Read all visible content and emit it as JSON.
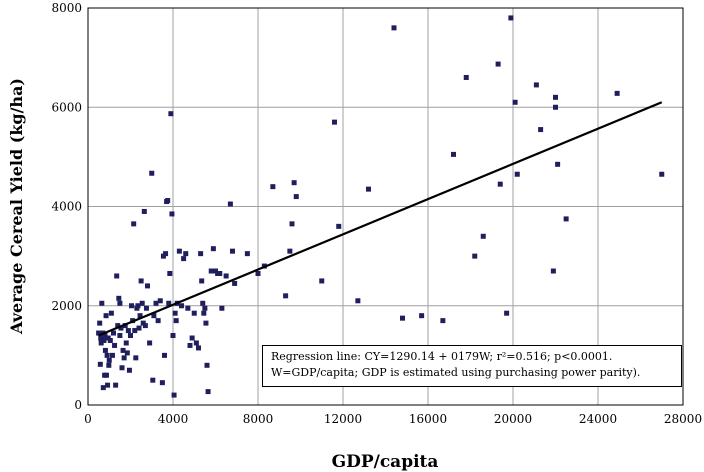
{
  "chart_data": {
    "type": "scatter",
    "title": "",
    "xlabel": "GDP/capita",
    "ylabel": "Average Cereal Yield (kg/ha)",
    "xlim": [
      0,
      28000
    ],
    "ylim": [
      0,
      8000
    ],
    "xticks": [
      "0",
      "4000",
      "8000",
      "12000",
      "16000",
      "20000",
      "24000",
      "28000"
    ],
    "yticks": [
      "0",
      "2000",
      "4000",
      "6000",
      "8000"
    ],
    "grid": "vertical and horizontal major gridlines",
    "marker_color": "#1f1f5e",
    "line_color": "#000000",
    "regression": {
      "x": [
        500,
        27000
      ],
      "y": [
        1400,
        6100
      ]
    },
    "annotation": [
      "Regression line: CY=1290.14 + 0179W; r²=0.516; p<0.0001.",
      "W=GDP/capita; GDP is estimated using purchasing power parity)."
    ],
    "points": [
      [
        500,
        1450
      ],
      [
        550,
        1650
      ],
      [
        580,
        820
      ],
      [
        600,
        1350
      ],
      [
        620,
        1250
      ],
      [
        650,
        2050
      ],
      [
        700,
        1450
      ],
      [
        720,
        350
      ],
      [
        750,
        1300
      ],
      [
        780,
        600
      ],
      [
        800,
        1400
      ],
      [
        820,
        1100
      ],
      [
        850,
        1800
      ],
      [
        870,
        600
      ],
      [
        900,
        1000
      ],
      [
        920,
        400
      ],
      [
        950,
        1350
      ],
      [
        980,
        800
      ],
      [
        1000,
        900
      ],
      [
        1050,
        1300
      ],
      [
        1100,
        1850
      ],
      [
        1150,
        1000
      ],
      [
        1200,
        1450
      ],
      [
        1250,
        1200
      ],
      [
        1300,
        400
      ],
      [
        1350,
        2600
      ],
      [
        1400,
        1600
      ],
      [
        1450,
        2150
      ],
      [
        1500,
        2050
      ],
      [
        1500,
        1400
      ],
      [
        1550,
        1550
      ],
      [
        1600,
        750
      ],
      [
        1650,
        1100
      ],
      [
        1700,
        950
      ],
      [
        1750,
        1600
      ],
      [
        1800,
        1250
      ],
      [
        1850,
        1050
      ],
      [
        1900,
        1500
      ],
      [
        1950,
        700
      ],
      [
        2000,
        1400
      ],
      [
        2050,
        2000
      ],
      [
        2100,
        1700
      ],
      [
        2150,
        3650
      ],
      [
        2200,
        1500
      ],
      [
        2250,
        950
      ],
      [
        2300,
        1950
      ],
      [
        2350,
        2000
      ],
      [
        2400,
        1550
      ],
      [
        2450,
        1800
      ],
      [
        2500,
        2500
      ],
      [
        2550,
        2050
      ],
      [
        2600,
        1650
      ],
      [
        2650,
        3900
      ],
      [
        2700,
        1600
      ],
      [
        2750,
        1950
      ],
      [
        2800,
        2400
      ],
      [
        2900,
        1250
      ],
      [
        3000,
        4670
      ],
      [
        3050,
        500
      ],
      [
        3100,
        1800
      ],
      [
        3200,
        2050
      ],
      [
        3300,
        1700
      ],
      [
        3400,
        2100
      ],
      [
        3500,
        450
      ],
      [
        3550,
        3000
      ],
      [
        3600,
        1000
      ],
      [
        3650,
        3050
      ],
      [
        3700,
        4100
      ],
      [
        3750,
        4120
      ],
      [
        3800,
        2050
      ],
      [
        3850,
        2650
      ],
      [
        3900,
        5870
      ],
      [
        3950,
        3850
      ],
      [
        4000,
        1400
      ],
      [
        4050,
        200
      ],
      [
        4100,
        1850
      ],
      [
        4150,
        1700
      ],
      [
        4200,
        2050
      ],
      [
        4300,
        3100
      ],
      [
        4400,
        2000
      ],
      [
        4500,
        2950
      ],
      [
        4600,
        3050
      ],
      [
        4700,
        1950
      ],
      [
        4800,
        1200
      ],
      [
        4900,
        1350
      ],
      [
        5000,
        1850
      ],
      [
        5100,
        1250
      ],
      [
        5200,
        1150
      ],
      [
        5300,
        3050
      ],
      [
        5350,
        2500
      ],
      [
        5400,
        2050
      ],
      [
        5450,
        1850
      ],
      [
        5500,
        1950
      ],
      [
        5550,
        1650
      ],
      [
        5600,
        800
      ],
      [
        5650,
        270
      ],
      [
        5800,
        2700
      ],
      [
        5900,
        3150
      ],
      [
        6000,
        2700
      ],
      [
        6100,
        2650
      ],
      [
        6200,
        2650
      ],
      [
        6300,
        1950
      ],
      [
        6500,
        2600
      ],
      [
        6700,
        4050
      ],
      [
        6800,
        3100
      ],
      [
        6900,
        2450
      ],
      [
        7500,
        3050
      ],
      [
        8000,
        2650
      ],
      [
        8300,
        2800
      ],
      [
        8700,
        4400
      ],
      [
        9300,
        2200
      ],
      [
        9500,
        3100
      ],
      [
        9600,
        3650
      ],
      [
        9700,
        4480
      ],
      [
        9800,
        4200
      ],
      [
        11000,
        2500
      ],
      [
        11600,
        5700
      ],
      [
        11800,
        3600
      ],
      [
        12700,
        2100
      ],
      [
        13200,
        4350
      ],
      [
        14400,
        7600
      ],
      [
        14800,
        1750
      ],
      [
        15700,
        1800
      ],
      [
        16700,
        1700
      ],
      [
        17200,
        5050
      ],
      [
        17800,
        6600
      ],
      [
        18200,
        3000
      ],
      [
        18600,
        3400
      ],
      [
        19300,
        6870
      ],
      [
        19400,
        4450
      ],
      [
        19700,
        1850
      ],
      [
        19900,
        7800
      ],
      [
        20100,
        6100
      ],
      [
        20200,
        4650
      ],
      [
        21100,
        6450
      ],
      [
        21300,
        5550
      ],
      [
        21900,
        2700
      ],
      [
        22000,
        6200
      ],
      [
        22000,
        6000
      ],
      [
        22100,
        4850
      ],
      [
        22500,
        3750
      ],
      [
        24900,
        6280
      ],
      [
        27000,
        4650
      ]
    ]
  }
}
